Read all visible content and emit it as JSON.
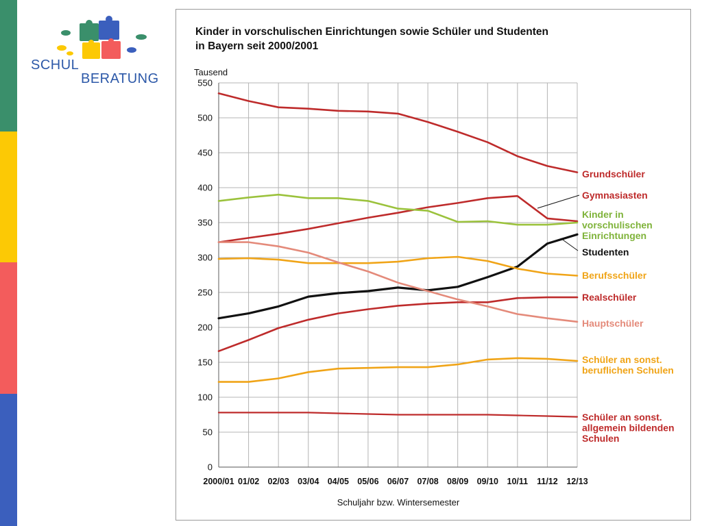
{
  "logo": {
    "word_top": "SCHUL",
    "word_bottom": "BERATUNG"
  },
  "colors": {
    "stripe_green": "#3a8f6b",
    "stripe_yellow": "#fcc905",
    "stripe_red": "#f35c5c",
    "stripe_blue": "#3b5fbd"
  },
  "chart_data": {
    "type": "line",
    "title_line1": "Kinder in vorschulischen Einrichtungen sowie Schüler und Studenten",
    "title_line2": "in Bayern seit 2000/2001",
    "ylabel": "Tausend",
    "xlabel": "Schuljahr bzw. Wintersemester",
    "ylim": [
      0,
      550
    ],
    "yticks": [
      0,
      50,
      100,
      150,
      200,
      250,
      300,
      350,
      400,
      450,
      500,
      550
    ],
    "grid": true,
    "legend": "right",
    "x": [
      "2000/01",
      "01/02",
      "02/03",
      "03/04",
      "04/05",
      "05/06",
      "06/07",
      "07/08",
      "08/09",
      "09/10",
      "10/11",
      "11/12",
      "12/13"
    ],
    "series": [
      {
        "key": "grundschueler",
        "label_lines": [
          "Grundschüler"
        ],
        "color": "#be2b2b",
        "label_color": "#be2b2b",
        "values": [
          535,
          524,
          515,
          513,
          510,
          509,
          506,
          494,
          480,
          465,
          445,
          431,
          422
        ]
      },
      {
        "key": "gymnasiasten",
        "label_lines": [
          "Gymnasiasten"
        ],
        "color": "#be2b2b",
        "label_color": "#be2b2b",
        "values": [
          322,
          328,
          334,
          341,
          349,
          357,
          364,
          372,
          378,
          385,
          388,
          356,
          352
        ]
      },
      {
        "key": "kinder_vorschul",
        "label_lines": [
          "Kinder in",
          "vorschulischen",
          "Einrichtungen"
        ],
        "color": "#9bc23c",
        "label_color": "#7fb33a",
        "values": [
          381,
          386,
          390,
          385,
          385,
          381,
          370,
          367,
          351,
          352,
          347,
          347,
          350
        ]
      },
      {
        "key": "studenten",
        "label_lines": [
          "Studenten"
        ],
        "color": "#111111",
        "label_color": "#111111",
        "values": [
          213,
          220,
          230,
          244,
          249,
          252,
          257,
          253,
          258,
          272,
          287,
          320,
          333
        ]
      },
      {
        "key": "berufsschueler",
        "label_lines": [
          "Berufsschüler"
        ],
        "color": "#f0a417",
        "label_color": "#f0a417",
        "values": [
          298,
          299,
          297,
          292,
          292,
          292,
          294,
          299,
          301,
          295,
          284,
          277,
          274
        ]
      },
      {
        "key": "realschueler",
        "label_lines": [
          "Realschüler"
        ],
        "color": "#be2b2b",
        "label_color": "#be2b2b",
        "values": [
          166,
          182,
          199,
          211,
          220,
          226,
          231,
          234,
          236,
          236,
          242,
          243,
          243
        ]
      },
      {
        "key": "hauptschueler",
        "label_lines": [
          "Hauptschüler"
        ],
        "color": "#e48a7a",
        "label_color": "#e48a7a",
        "values": [
          322,
          322,
          316,
          307,
          293,
          280,
          264,
          252,
          240,
          230,
          219,
          213,
          208
        ]
      },
      {
        "key": "sonst_beruflich",
        "label_lines": [
          "Schüler an sonst.",
          "beruflichen Schulen"
        ],
        "color": "#f0a417",
        "label_color": "#f0a417",
        "values": [
          122,
          122,
          127,
          136,
          141,
          142,
          143,
          143,
          147,
          154,
          156,
          155,
          152
        ]
      },
      {
        "key": "sonst_allgemein",
        "label_lines": [
          "Schüler an sonst.",
          "allgemein bildenden",
          "Schulen"
        ],
        "color": "#be2b2b",
        "label_color": "#be2b2b",
        "values": [
          78,
          78,
          78,
          78,
          77,
          76,
          75,
          75,
          75,
          75,
          74,
          73,
          72
        ]
      }
    ]
  }
}
